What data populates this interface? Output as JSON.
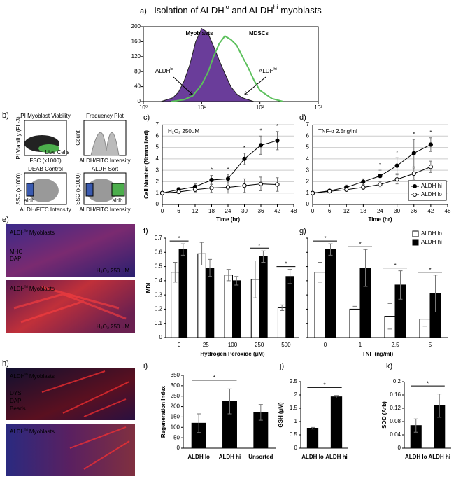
{
  "chart_data": [
    {
      "type": "area",
      "label": "a)",
      "title": [
        "Isolation of ALDH",
        "lo",
        " and ALDH",
        "hi",
        " myoblasts"
      ],
      "log_x": true,
      "xlim": [
        1,
        1000
      ],
      "xticks": [
        {
          "value": 1,
          "label": "10⁰"
        },
        {
          "value": 10,
          "label": "10¹"
        },
        {
          "value": 100,
          "label": "10²"
        },
        {
          "value": 1000,
          "label": "10³"
        }
      ],
      "ylim": [
        0,
        200
      ],
      "yticks": [
        0,
        40,
        80,
        120,
        160,
        200
      ],
      "series": [
        {
          "name": "Myoblasts",
          "color": "#6a3d9a",
          "filled": true,
          "x": [
            2,
            3.2,
            4,
            5,
            6.3,
            7.9,
            10,
            12.6,
            15.8,
            20,
            25,
            31.6,
            40,
            50,
            79
          ],
          "values": [
            0,
            10,
            25,
            55,
            100,
            160,
            195,
            185,
            150,
            110,
            75,
            40,
            20,
            10,
            0
          ]
        },
        {
          "name": "MDSCs",
          "color": "#5cc05c",
          "filled": false,
          "x": [
            3,
            5,
            7,
            10,
            13,
            16,
            20,
            25,
            32,
            40,
            50,
            63,
            80,
            100,
            160,
            250
          ],
          "values": [
            0,
            5,
            15,
            45,
            80,
            120,
            155,
            175,
            165,
            150,
            120,
            90,
            55,
            30,
            8,
            0
          ]
        }
      ],
      "annotations": [
        [
          "ALDH",
          "lo"
        ],
        [
          "ALDH",
          "hi"
        ]
      ]
    },
    {
      "type": "image",
      "label": "b)",
      "texts": [
        "PI Myoblast Viability",
        "Frequency Plot",
        "DEAB Control",
        "ALDH Sort",
        "Live Cells",
        "aldh",
        "aldh",
        "FSC (x1000)",
        "ALDH/FITC Intensity",
        "ALDH/FITC Intensity",
        "ALDH/FITC Intensity",
        "PI Viability (FL-3)",
        "Count",
        "SSC (x1000)",
        "SSC (x1000)"
      ]
    },
    {
      "type": "line",
      "label": "c)",
      "annotation": "H₂O₂ 250µM",
      "grid": true,
      "legend": false,
      "x": [
        0,
        6,
        12,
        18,
        24,
        30,
        36,
        42
      ],
      "xlim": [
        0,
        48
      ],
      "xticks": [
        0,
        6,
        12,
        18,
        24,
        30,
        36,
        42,
        48
      ],
      "ylim": [
        0,
        7
      ],
      "yticks": [
        0,
        1,
        2,
        3,
        4,
        5,
        6,
        7
      ],
      "xlabel": "Time (hr)",
      "ylabel": "Cell Number (Normalized)",
      "series": [
        {
          "name": "ALDH hi",
          "color": "#000000",
          "fill": "#000000",
          "values": [
            1,
            1.3,
            1.55,
            2.15,
            2.25,
            4.0,
            5.2,
            5.6
          ],
          "errors": [
            0,
            0.2,
            0.25,
            0.4,
            0.35,
            0.5,
            0.8,
            0.8
          ]
        },
        {
          "name": "ALDH lo",
          "color": "#000000",
          "fill": "#ffffff",
          "values": [
            1,
            1.1,
            1.3,
            1.45,
            1.5,
            1.65,
            1.8,
            1.75
          ],
          "errors": [
            0,
            0.15,
            0.2,
            0.4,
            0.5,
            0.6,
            0.6,
            0.6
          ]
        }
      ],
      "star": "*",
      "significant_x": [
        18,
        24,
        30,
        36,
        42
      ]
    },
    {
      "type": "line",
      "label": "d)",
      "annotation": "TNF-α 2.5ng/ml",
      "grid": true,
      "legend": "lower right",
      "x": [
        0,
        6,
        12,
        18,
        24,
        30,
        36,
        42
      ],
      "xlim": [
        0,
        48
      ],
      "xticks": [
        0,
        6,
        12,
        18,
        24,
        30,
        36,
        42,
        48
      ],
      "ylim": [
        0,
        7
      ],
      "yticks": [
        0,
        1,
        2,
        3,
        4,
        5,
        6,
        7
      ],
      "xlabel": "Time (hr)",
      "series": [
        {
          "name": "ALDH hi",
          "color": "#000000",
          "fill": "#000000",
          "values": [
            1,
            1.2,
            1.5,
            2.0,
            2.5,
            3.4,
            4.5,
            5.25
          ],
          "errors": [
            0,
            0.1,
            0.2,
            0.25,
            0.5,
            0.7,
            1.2,
            0.6
          ]
        },
        {
          "name": "ALDH lo",
          "color": "#000000",
          "fill": "#ffffff",
          "values": [
            1,
            1.15,
            1.3,
            1.5,
            1.75,
            2.2,
            2.7,
            3.3
          ],
          "errors": [
            0,
            0.1,
            0.15,
            0.2,
            0.3,
            0.4,
            0.5,
            0.5
          ]
        }
      ],
      "star": "*",
      "significant_x": [
        24,
        30,
        36,
        42
      ]
    },
    {
      "type": "image",
      "label": "e)",
      "texts": [
        [
          "ALDH",
          "lo",
          " Myoblasts"
        ],
        "MHC",
        "DAPI",
        "H₂O₂ 250 µM",
        [
          "ALDH",
          "hi",
          " Myoblasts"
        ],
        "H₂O₂ 250 µM"
      ]
    },
    {
      "type": "bar",
      "label": "f)",
      "categories": [
        "0",
        "25",
        "100",
        "250",
        "500"
      ],
      "ylim": [
        0,
        0.7
      ],
      "yticks": [
        0,
        0.1,
        0.2,
        0.3,
        0.4,
        0.5,
        0.6,
        0.7
      ],
      "xlabel": "Hydrogen Peroxide (µM)",
      "ylabel": "MDI",
      "legend": false,
      "series": [
        {
          "name": "ALDH lo",
          "color": "#ffffff",
          "values": [
            0.46,
            0.59,
            0.44,
            0.41,
            0.21
          ],
          "errors": [
            0.07,
            0.08,
            0.04,
            0.13,
            0.02
          ]
        },
        {
          "name": "ALDH hi",
          "color": "#000000",
          "values": [
            0.62,
            0.49,
            0.4,
            0.57,
            0.43
          ],
          "errors": [
            0.04,
            0.06,
            0.03,
            0.04,
            0.05
          ]
        }
      ],
      "star": "*",
      "significant": [
        true,
        false,
        false,
        true,
        true
      ]
    },
    {
      "type": "bar",
      "label": "g)",
      "categories": [
        "0",
        "1",
        "2.5",
        "5"
      ],
      "ylim": [
        0,
        0.7
      ],
      "yticks": [
        0,
        0.1,
        0.2,
        0.3,
        0.4,
        0.5,
        0.6,
        0.7
      ],
      "show_ytick_labels": false,
      "xlabel": "TNF (ng/ml)",
      "legend": "upper right",
      "series": [
        {
          "name": "ALDH lo",
          "color": "#ffffff",
          "values": [
            0.46,
            0.2,
            0.15,
            0.13
          ],
          "errors": [
            0.07,
            0.02,
            0.09,
            0.05
          ]
        },
        {
          "name": "ALDH hi",
          "color": "#000000",
          "values": [
            0.62,
            0.49,
            0.37,
            0.31
          ],
          "errors": [
            0.04,
            0.13,
            0.1,
            0.13
          ]
        }
      ],
      "star": "*",
      "significant": [
        true,
        true,
        true,
        true
      ]
    },
    {
      "type": "image",
      "label": "h)",
      "texts": [
        [
          "ALDH",
          "lo",
          " Myoblasts"
        ],
        "DYS",
        "DAPI",
        "Beads",
        [
          "ALDH",
          "hi",
          " Myoblasts"
        ]
      ]
    },
    {
      "type": "bar",
      "label": "i)",
      "categories": [
        "ALDH lo",
        "ALDH hi",
        "Unsorted"
      ],
      "ylim": [
        0,
        350
      ],
      "yticks": [
        0,
        50,
        100,
        150,
        200,
        250,
        300,
        350
      ],
      "ylabel": "Regeneration Index",
      "series": [
        {
          "color": "#000000",
          "values": [
            120,
            225,
            172
          ],
          "errors": [
            45,
            60,
            38
          ]
        }
      ],
      "star": "*",
      "bracket": [
        0,
        1
      ]
    },
    {
      "type": "bar",
      "label": "j)",
      "categories": [
        "ALDH lo",
        "ALDH hi"
      ],
      "ylim": [
        0,
        2.5
      ],
      "yticks": [
        0,
        0.5,
        1,
        1.5,
        2,
        2.5
      ],
      "ylabel": "GSH (µM)",
      "series": [
        {
          "color": "#000000",
          "values": [
            0.75,
            1.93
          ],
          "errors": [
            0.03,
            0.05
          ]
        }
      ],
      "star": "*",
      "bracket": [
        0,
        1
      ]
    },
    {
      "type": "bar",
      "label": "k)",
      "categories": [
        "ALDH lo",
        "ALDH hi"
      ],
      "ylim": [
        0,
        0.2
      ],
      "yticks": [
        0,
        0.04,
        0.08,
        0.12,
        0.16,
        0.2
      ],
      "ylabel": "SOD (Arb)",
      "series": [
        {
          "color": "#000000",
          "values": [
            0.068,
            0.128
          ],
          "errors": [
            0.02,
            0.035
          ]
        }
      ],
      "star": "*",
      "bracket": [
        0,
        1
      ]
    }
  ]
}
